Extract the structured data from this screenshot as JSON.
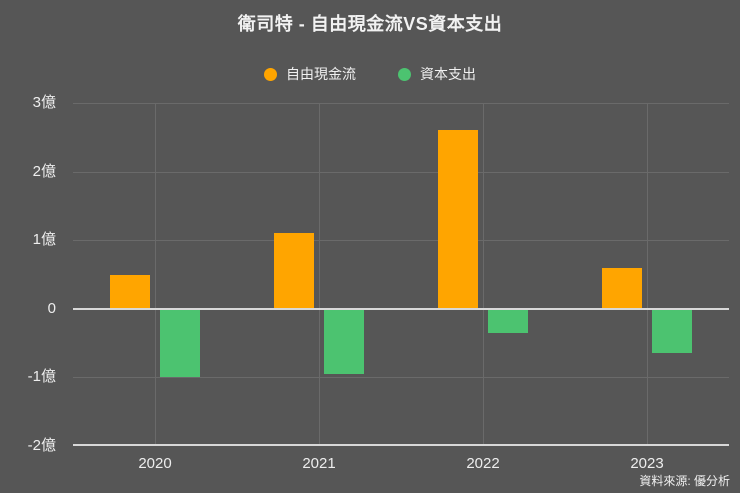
{
  "title": "衛司特 - 自由現金流VS資本支出",
  "source": "資料來源: 優分析",
  "colors": {
    "background": "#565656",
    "text": "#F2F2F2",
    "gridline": "#6A6A6A",
    "zero_line": "#D8D8D8",
    "fcf_orange": "#FFA500",
    "capex_green": "#4CC370"
  },
  "legend": [
    {
      "label": "自由現金流",
      "color": "#FFA500"
    },
    {
      "label": "資本支出",
      "color": "#4CC370"
    }
  ],
  "chart_data": {
    "type": "bar",
    "title": "衛司特 - 自由現金流VS資本支出",
    "categories": [
      "2020",
      "2021",
      "2022",
      "2023"
    ],
    "series": [
      {
        "key": "fcf",
        "name": "自由現金流",
        "color": "#FFA500",
        "values": [
          0.5,
          1.1,
          2.6,
          0.6
        ]
      },
      {
        "key": "capex",
        "name": "資本支出",
        "color": "#4CC370",
        "values": [
          -1.0,
          -0.95,
          -0.35,
          -0.65
        ]
      }
    ],
    "unit": "億",
    "ylim": [
      -2,
      3
    ],
    "yticks": [
      {
        "value": 3,
        "label": "3億"
      },
      {
        "value": 2,
        "label": "2億"
      },
      {
        "value": 1,
        "label": "1億"
      },
      {
        "value": 0,
        "label": "0"
      },
      {
        "value": -1,
        "label": "-1億"
      },
      {
        "value": -2,
        "label": "-2億"
      }
    ],
    "grid": true,
    "legend_position": "top-center",
    "xlabel": "",
    "ylabel": ""
  }
}
